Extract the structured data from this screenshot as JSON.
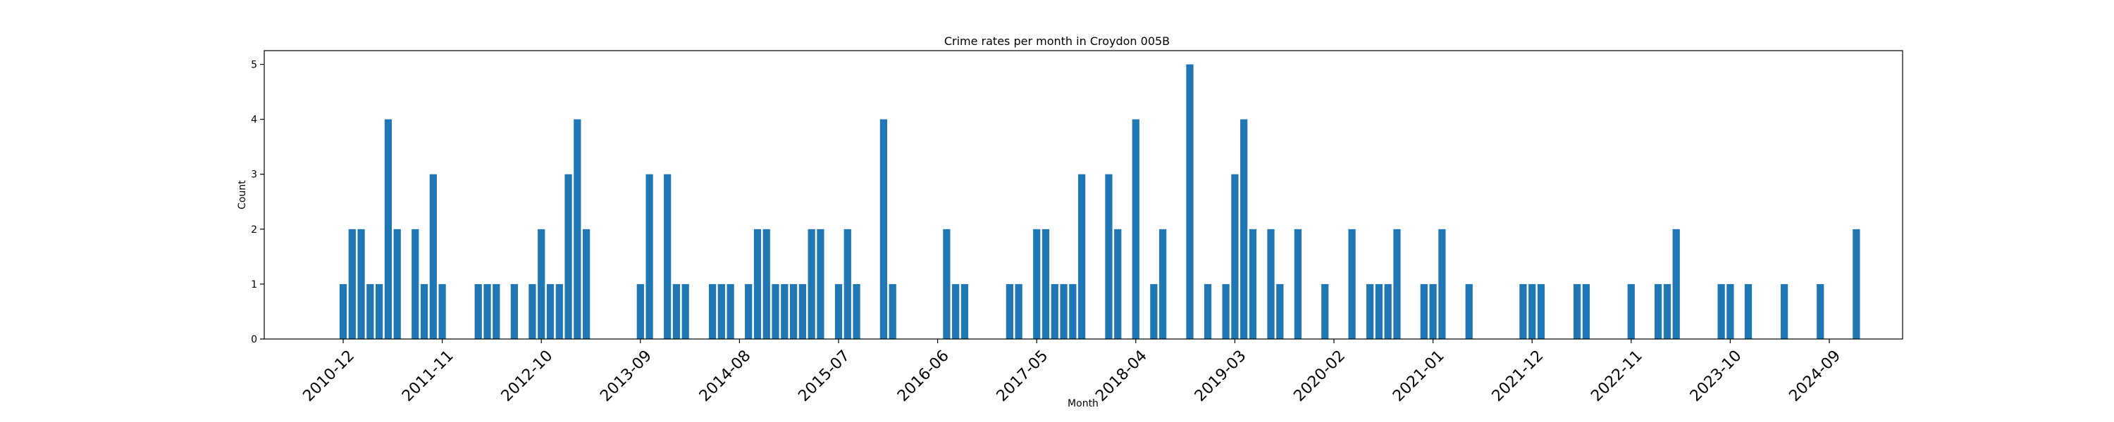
{
  "chart_data": {
    "type": "bar",
    "title": "Crime rates per month in Croydon 005B",
    "xlabel": "Month",
    "ylabel": "Count",
    "ylim": [
      0,
      5.25
    ],
    "yticks": [
      0,
      1,
      2,
      3,
      4,
      5
    ],
    "xtick_labels": [
      "2010-12",
      "2011-11",
      "2012-10",
      "2013-09",
      "2014-08",
      "2015-07",
      "2016-06",
      "2017-05",
      "2018-04",
      "2019-03",
      "2020-02",
      "2021-01",
      "2021-12",
      "2022-11",
      "2023-10",
      "2024-09"
    ],
    "bar_color": "#1f77b4",
    "grid": false,
    "legend": "none",
    "series": [
      {
        "x": [
          "2010-12",
          "2011-01",
          "2011-02",
          "2011-03",
          "2011-04",
          "2011-05",
          "2011-06",
          "2011-08",
          "2011-09",
          "2011-10",
          "2011-11",
          "2012-03",
          "2012-04",
          "2012-05",
          "2012-07",
          "2012-09",
          "2012-10",
          "2012-11",
          "2012-12",
          "2013-01",
          "2013-02",
          "2013-03",
          "2013-09",
          "2013-10",
          "2013-12",
          "2014-01",
          "2014-02",
          "2014-05",
          "2014-06",
          "2014-07",
          "2014-09",
          "2014-10",
          "2014-11",
          "2014-12",
          "2015-01",
          "2015-02",
          "2015-03",
          "2015-04",
          "2015-05",
          "2015-07",
          "2015-08",
          "2015-09",
          "2015-12",
          "2016-01",
          "2016-07",
          "2016-08",
          "2016-09",
          "2017-02",
          "2017-03",
          "2017-05",
          "2017-06",
          "2017-07",
          "2017-08",
          "2017-09",
          "2017-10",
          "2018-01",
          "2018-02",
          "2018-04",
          "2018-06",
          "2018-07",
          "2018-10",
          "2018-12",
          "2019-02",
          "2019-03",
          "2019-04",
          "2019-05",
          "2019-07",
          "2019-08",
          "2019-10",
          "2020-01",
          "2020-04",
          "2020-06",
          "2020-07",
          "2020-08",
          "2020-09",
          "2020-12",
          "2021-01",
          "2021-02",
          "2021-05",
          "2021-11",
          "2021-12",
          "2022-01",
          "2022-05",
          "2022-06",
          "2022-11",
          "2023-02",
          "2023-03",
          "2023-04",
          "2023-09",
          "2023-10",
          "2023-12",
          "2024-04",
          "2024-08",
          "2024-12"
        ],
        "values": [
          1,
          2,
          2,
          1,
          1,
          4,
          2,
          2,
          1,
          3,
          1,
          1,
          1,
          1,
          1,
          1,
          2,
          1,
          1,
          3,
          4,
          2,
          1,
          3,
          3,
          1,
          1,
          1,
          1,
          1,
          1,
          2,
          2,
          1,
          1,
          1,
          1,
          2,
          2,
          1,
          2,
          1,
          4,
          1,
          2,
          1,
          1,
          1,
          1,
          2,
          2,
          1,
          1,
          1,
          3,
          3,
          2,
          4,
          1,
          2,
          5,
          1,
          1,
          3,
          4,
          2,
          2,
          1,
          2,
          1,
          2,
          1,
          1,
          1,
          2,
          1,
          1,
          2,
          1,
          1,
          1,
          1,
          1,
          1,
          1,
          1,
          1,
          2,
          1,
          1,
          1,
          1,
          1,
          2
        ]
      }
    ]
  }
}
